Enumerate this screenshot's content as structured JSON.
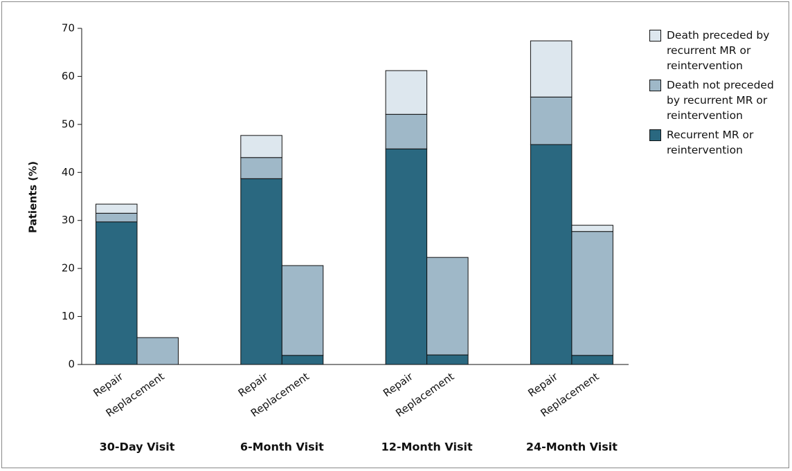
{
  "chart_data": {
    "type": "stacked_bar",
    "y_label": "Patients (%)",
    "categories": [
      "Repair",
      "Replacement",
      "Repair",
      "Replacement",
      "Repair",
      "Replacement",
      "Repair",
      "Replacement"
    ],
    "groups": [
      "30-Day Visit",
      "6-Month Visit",
      "12-Month Visit",
      "24-Month Visit"
    ],
    "series": [
      {
        "name": "Recurrent MR or reintervention",
        "color": "#2a6880",
        "values": [
          29.7,
          0,
          38.7,
          1.9,
          44.9,
          2.0,
          45.8,
          1.9
        ]
      },
      {
        "name": "Death not preceded by recurrent MR or reintervention",
        "color": "#9fb8c8",
        "values": [
          1.8,
          5.6,
          4.4,
          18.7,
          7.2,
          20.3,
          9.9,
          25.8
        ]
      },
      {
        "name": "Death preceded by recurrent MR or reintervention",
        "color": "#dde7ee",
        "values": [
          1.9,
          0,
          4.6,
          0,
          9.1,
          0,
          11.7,
          1.3
        ]
      }
    ],
    "ylim": [
      0,
      70
    ],
    "yticks": [
      0,
      10,
      20,
      30,
      40,
      50,
      60,
      70
    ],
    "legend": "right"
  }
}
